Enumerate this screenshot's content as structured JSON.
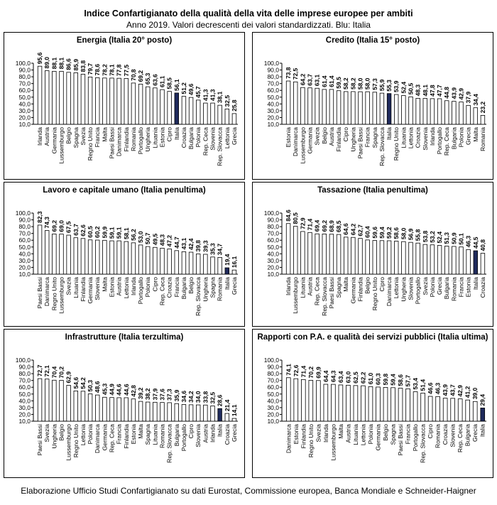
{
  "title": "Indice Confartigianato della qualità della vita delle imprese europee per ambiti",
  "subtitle": "Anno 2019. Valori decrescenti dei valori standardizzati. Blu: Italia",
  "footer": "Elaborazione Ufficio Studi Confartigianato su dati Eurostat, Commissione europea, Banca Mondiale e Schneider-Haigner",
  "colors": {
    "highlight": "#1f2a5c",
    "bar": "#ffffff",
    "stroke": "#000000"
  },
  "chart_data": [
    {
      "type": "bar",
      "title": "Energia (Italia 20° posto)",
      "ylim": [
        10,
        100
      ],
      "yticks": [
        "10,0",
        "20,0",
        "30,0",
        "40,0",
        "50,0",
        "60,0",
        "70,0",
        "80,0",
        "90,0",
        "100,0"
      ],
      "highlight": "Italia",
      "categories": [
        "Irlanda",
        "Austria",
        "Germania",
        "Lussemburgo",
        "Belgio",
        "Spagna",
        "Svezia",
        "Regno Unito",
        "Francia",
        "Malta",
        "Paesi Bassi",
        "Danimarca",
        "Finlandia",
        "Romania",
        "Portogallo",
        "Ungheria",
        "Lituania",
        "Estonia",
        "Cipro",
        "Italia",
        "Croazia",
        "Bulgaria",
        "Polonia",
        "Rep. Ceca",
        "Slovenia",
        "Rep. Slovacca",
        "Lettonia",
        "Grecia"
      ],
      "values": [
        95.6,
        89.0,
        88.1,
        88.1,
        86.6,
        85.9,
        83.8,
        79.7,
        78.6,
        78.2,
        78.1,
        77.8,
        77.5,
        70.8,
        69.2,
        65.3,
        63.6,
        61.1,
        58.5,
        56.1,
        51.2,
        49.6,
        45.7,
        41.3,
        41.3,
        38.1,
        32.5,
        25.8
      ],
      "labels": [
        "95,6",
        "89,0",
        "88,1",
        "88,1",
        "86,6",
        "85,9",
        "83,8",
        "79,7",
        "78,6",
        "78,2",
        "78,1",
        "77,8",
        "77,5",
        "70,8",
        "69,2",
        "65,3",
        "63,6",
        "61,1",
        "58,5",
        "56,1",
        "51,2",
        "49,6",
        "45,7",
        "41,3",
        "41,3",
        "38,1",
        "32,5",
        "25,8"
      ]
    },
    {
      "type": "bar",
      "title": "Credito (Italia 15° posto)",
      "ylim": [
        10,
        100
      ],
      "yticks": [
        "10,0",
        "20,0",
        "30,0",
        "40,0",
        "50,0",
        "60,0",
        "70,0",
        "80,0",
        "90,0",
        "100,0"
      ],
      "highlight": "Italia",
      "categories": [
        "Estonia",
        "Danimarca",
        "Lussemburgo",
        "Germania",
        "Svezia",
        "Belgio",
        "Austria",
        "Finlandia",
        "Cipro",
        "Ungheria",
        "Paesi Bassi",
        "Francia",
        "Spagna",
        "Rep. Slovacca",
        "Italia",
        "Regno Unito",
        "Lituania",
        "Lettonia",
        "Croazia",
        "Slovenia",
        "Irlanda",
        "Portogallo",
        "Rep. Ceca",
        "Bulgaria",
        "Polonia",
        "Grecia",
        "Malta",
        "Romania"
      ],
      "values": [
        73.8,
        72.5,
        64.2,
        63.7,
        63.1,
        61.4,
        61.4,
        59.5,
        58.2,
        58.2,
        58.0,
        58.0,
        57.3,
        55.9,
        55.3,
        53.9,
        52.4,
        50.5,
        48.3,
        48.1,
        47.8,
        47.7,
        44.8,
        43.9,
        42.9,
        37.9,
        34.4,
        23.2
      ],
      "labels": [
        "73,8",
        "72,5",
        "64,2",
        "63,7",
        "63,1",
        "61,4",
        "61,4",
        "59,5",
        "58,2",
        "58,2",
        "58,0",
        "58,0",
        "57,3",
        "55,9",
        "55,3",
        "53,9",
        "52,4",
        "50,5",
        "48,3",
        "48,1",
        "47,8",
        "47,7",
        "44,8",
        "43,9",
        "42,9",
        "37,9",
        "34,4",
        "23,2"
      ]
    },
    {
      "type": "bar",
      "title": "Lavoro e capitale umano (Italia penultima)",
      "ylim": [
        10,
        100
      ],
      "yticks": [
        "10,0",
        "20,0",
        "30,0",
        "40,0",
        "50,0",
        "60,0",
        "70,0",
        "80,0",
        "90,0",
        "100,0"
      ],
      "highlight": "Italia",
      "categories": [
        "Paesi Bassi",
        "Danimarca",
        "Regno Unito",
        "Lussemburgo",
        "Svezia",
        "Lituania",
        "Finlandia",
        "Germania",
        "Slovenia",
        "Malta",
        "Estonia",
        "Austria",
        "Lettonia",
        "Irlanda",
        "Portogallo",
        "Polonia",
        "Cipro",
        "Rep. Ceca",
        "Croazia",
        "Francia",
        "Bulgaria",
        "Belgio",
        "Rep. Slovacca",
        "Ungheria",
        "Spagna",
        "Romania",
        "Italia",
        "Grecia"
      ],
      "values": [
        82.3,
        74.3,
        69.2,
        69.0,
        67.5,
        63.7,
        62.6,
        60.5,
        60.2,
        59.9,
        59.1,
        59.1,
        58.1,
        56.2,
        53.0,
        50.7,
        49.5,
        48.3,
        47.2,
        44.7,
        43.1,
        42.4,
        39.8,
        39.3,
        35.3,
        34.7,
        19.4,
        16.1
      ],
      "labels": [
        "82,3",
        "74,3",
        "69,2",
        "69,0",
        "67,5",
        "63,7",
        "62,6",
        "60,5",
        "60,2",
        "59,9",
        "59,1",
        "59,1",
        "58,1",
        "56,2",
        "53,0",
        "50,7",
        "49,5",
        "48,3",
        "47,2",
        "44,7",
        "43,1",
        "42,4",
        "39,8",
        "39,3",
        "35,3",
        "34,7",
        "19,4",
        "16,1"
      ]
    },
    {
      "type": "bar",
      "title": "Tassazione (Italia penultima)",
      "ylim": [
        10,
        100
      ],
      "yticks": [
        "10,0",
        "20,0",
        "30,0",
        "40,0",
        "50,0",
        "60,0",
        "70,0",
        "80,0",
        "90,0",
        "100,0"
      ],
      "highlight": "Italia",
      "categories": [
        "Irlanda",
        "Lussemburgo",
        "Lituania",
        "Austria",
        "Rep. Ceca",
        "Rep. Slovacca",
        "Paesi Bassi",
        "Spagna",
        "Malta",
        "Germania",
        "Finlandia",
        "Belgio",
        "Regno Unito",
        "Cipro",
        "Danimarca",
        "Lettonia",
        "Ungheria",
        "Slovenia",
        "Portogallo",
        "Svezia",
        "Polonia",
        "Grecia",
        "Bulgaria",
        "Romania",
        "Francia",
        "Estonia",
        "Italia",
        "Croazia"
      ],
      "values": [
        84.6,
        80.5,
        72.9,
        71.4,
        69.4,
        69.2,
        68.9,
        68.5,
        64.6,
        64.2,
        62.7,
        60.4,
        59.6,
        59.4,
        59.2,
        58.6,
        58.0,
        56.9,
        55.8,
        53.8,
        53.2,
        52.4,
        51.3,
        50.9,
        50.1,
        46.3,
        44.5,
        40.8
      ],
      "labels": [
        "84,6",
        "80,5",
        "72,9",
        "71,4",
        "69,4",
        "69,2",
        "68,9",
        "68,5",
        "64,6",
        "64,2",
        "62,7",
        "60,4",
        "59,6",
        "59,4",
        "59,2",
        "58,6",
        "58,0",
        "56,9",
        "55,8",
        "53,8",
        "53,2",
        "52,4",
        "51,3",
        "50,9",
        "50,1",
        "46,3",
        "44,5",
        "40,8"
      ]
    },
    {
      "type": "bar",
      "title": "Infrastrutture (Italia terzultima)",
      "ylim": [
        10,
        100
      ],
      "yticks": [
        "10,0",
        "20,0",
        "30,0",
        "40,0",
        "50,0",
        "60,0",
        "70,0",
        "80,0",
        "90,0",
        "100,0"
      ],
      "highlight": "Italia",
      "categories": [
        "Paesi Bassi",
        "Svezia",
        "Ungheria",
        "Belgio",
        "Lussemburgo",
        "Regno Unito",
        "Lettonia",
        "Polonia",
        "Danimarca",
        "Germania",
        "Rep. Ceca",
        "Francia",
        "Finlandia",
        "Estonia",
        "Malta",
        "Spagna",
        "Lituania",
        "Romania",
        "Rep. Slovacca",
        "Bulgaria",
        "Portogallo",
        "Cipro",
        "Slovenia",
        "Austria",
        "Irlanda",
        "Italia",
        "Croazia",
        "Grecia"
      ],
      "values": [
        72.7,
        72.1,
        70.4,
        70.2,
        62.9,
        54.6,
        54.2,
        50.3,
        48.6,
        45.3,
        44.9,
        44.6,
        44.6,
        42.8,
        39.2,
        38.2,
        37.9,
        37.6,
        37.3,
        35.9,
        34.6,
        34.2,
        34.0,
        33.8,
        32.5,
        28.6,
        21.4,
        14.1
      ],
      "labels": [
        "72,7",
        "72,1",
        "70,4",
        "70,2",
        "62,9",
        "54,6",
        "54,2",
        "50,3",
        "48,6",
        "45,3",
        "44,9",
        "44,6",
        "44,6",
        "42,8",
        "39,2",
        "38,2",
        "37,9",
        "37,6",
        "37,3",
        "35,9",
        "34,6",
        "34,2",
        "34,0",
        "33,8",
        "32,5",
        "28,6",
        "21,4",
        "14,1"
      ]
    },
    {
      "type": "bar",
      "title": "Rapporti con P.A. e qualità dei servizi pubblici (Italia ultima)",
      "ylim": [
        10,
        100
      ],
      "yticks": [
        "10,0",
        "20,0",
        "30,0",
        "40,0",
        "50,0",
        "60,0",
        "70,0",
        "80,0",
        "90,0",
        "100,0"
      ],
      "highlight": "Italia",
      "categories": [
        "Danimarca",
        "Estonia",
        "Finlandia",
        "Regno Unito",
        "Svezia",
        "Irlanda",
        "Lussemburgo",
        "Malta",
        "Austria",
        "Lituania",
        "Lettonia",
        "Polonia",
        "Germania",
        "Belgio",
        "Spagna",
        "Paesi Bassi",
        "Francia",
        "Portogallo",
        "Rep. Slovacca",
        "Cipro",
        "Romania",
        "Croazia",
        "Slovenia",
        "Rep. Ceca",
        "Bulgaria",
        "Grecia",
        "Italia"
      ],
      "values": [
        74.1,
        72.6,
        71.4,
        70.2,
        69.9,
        64.4,
        64.3,
        63.4,
        63.0,
        62.5,
        62.2,
        61.0,
        60.3,
        59.8,
        59.4,
        58.6,
        57.7,
        53.4,
        51.4,
        46.6,
        46.3,
        43.9,
        43.7,
        42.9,
        41.2,
        39.0,
        29.4
      ],
      "labels": [
        "74,1",
        "72,6",
        "71,4",
        "70,2",
        "69,9",
        "64,4",
        "64,3",
        "63,4",
        "63,0",
        "62,5",
        "62,2",
        "61,0",
        "60,3",
        "59,8",
        "59,4",
        "58,6",
        "57,7",
        "53,4",
        "51,4",
        "46,6",
        "46,3",
        "43,9",
        "43,7",
        "42,9",
        "41,2",
        "39,0",
        "29,4"
      ]
    }
  ]
}
